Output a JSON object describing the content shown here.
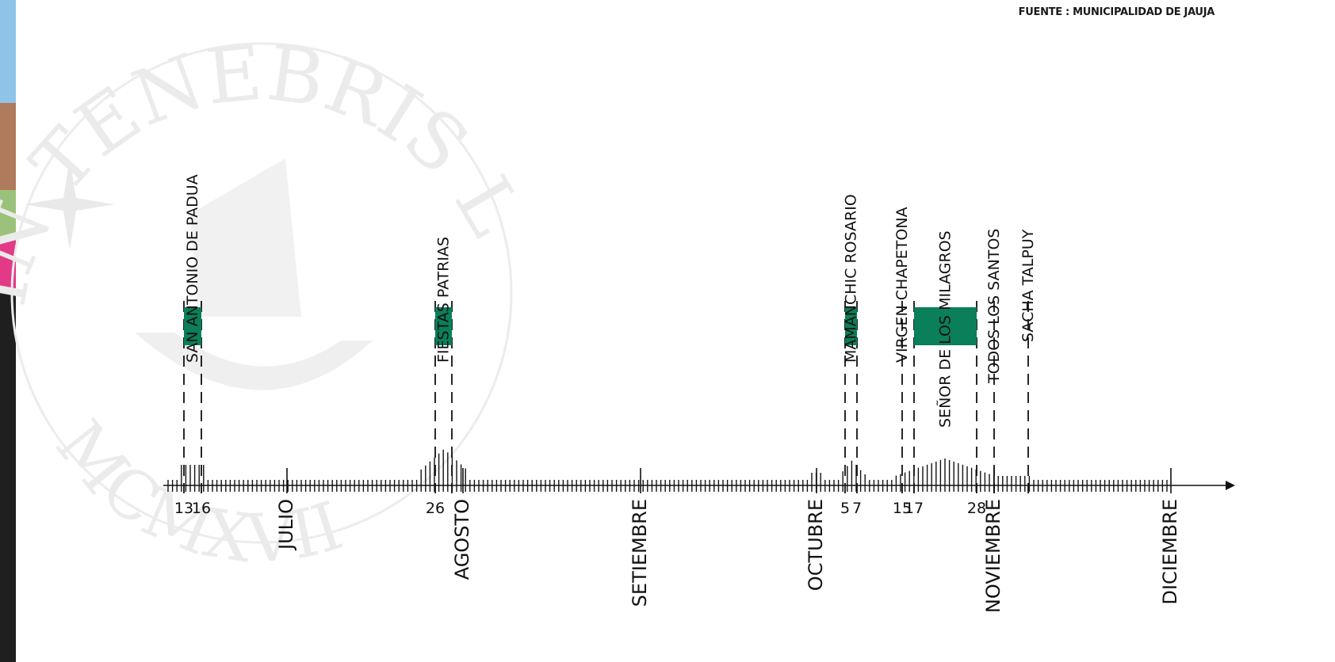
{
  "source": "FUENTE : MUNICIPALIDAD DE JAUJA",
  "colors": {
    "event_fill": "#0a7f5a",
    "ink": "#111111",
    "watermark": "#e6e6e6",
    "photo_strip": "#3a8fd0"
  },
  "watermark": {
    "motto": "IN TENEBRIS LUCET",
    "year": "MCMXVII"
  },
  "timeline": {
    "range": [
      "06-01",
      "12-01"
    ],
    "months": [
      {
        "name": "JULIO",
        "date": "07-01"
      },
      {
        "name": "AGOSTO",
        "date": "08-01"
      },
      {
        "name": "SETIEMBRE",
        "date": "09-01"
      },
      {
        "name": "OCTUBRE",
        "date": "10-01"
      },
      {
        "name": "NOVIEMBRE",
        "date": "11-01"
      },
      {
        "name": "DICIEMBRE",
        "date": "12-01"
      }
    ],
    "day_labels": [
      {
        "text": "13",
        "date": "06-13"
      },
      {
        "text": "16",
        "date": "06-16"
      },
      {
        "text": "26",
        "date": "07-26"
      },
      {
        "text": "5",
        "date": "10-05"
      },
      {
        "text": "7",
        "date": "10-07"
      },
      {
        "text": "15",
        "date": "10-15"
      },
      {
        "text": "17",
        "date": "10-17"
      },
      {
        "text": "28",
        "date": "10-28"
      }
    ],
    "events": [
      {
        "name": "SAN ANTONIO DE PADUA",
        "start": "06-13",
        "end": "06-16",
        "bar": true
      },
      {
        "name": "FIESTAS PATRIAS",
        "start": "07-26",
        "end": "07-29",
        "bar": true
      },
      {
        "name": "MAMANCHIC ROSARIO",
        "start": "10-05",
        "end": "10-07",
        "bar": true
      },
      {
        "name": "VIRGEN CHAPETONA",
        "start": "10-15",
        "end": "10-15",
        "bar": false
      },
      {
        "name": "SEÑOR DE LOS MILAGROS",
        "start": "10-17",
        "end": "10-28",
        "bar": true
      },
      {
        "name": "TODOS LOS SANTOS",
        "start": "11-01",
        "end": "11-01",
        "bar": false
      },
      {
        "name": "SACHA TALPUY",
        "start": "11-05",
        "end": "11-05",
        "bar": false
      }
    ]
  }
}
